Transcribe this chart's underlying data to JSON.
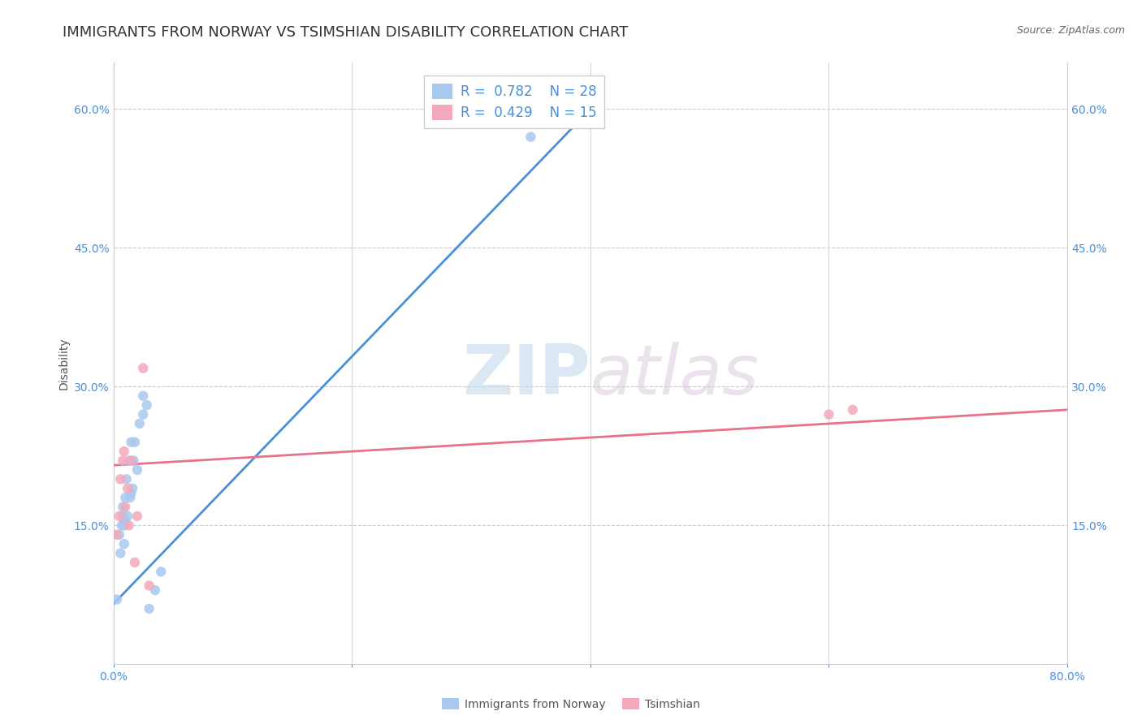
{
  "title": "IMMIGRANTS FROM NORWAY VS TSIMSHIAN DISABILITY CORRELATION CHART",
  "source": "Source: ZipAtlas.com",
  "ylabel": "Disability",
  "xlim": [
    0.0,
    0.8
  ],
  "ylim": [
    0.0,
    0.65
  ],
  "yticks": [
    0.0,
    0.15,
    0.3,
    0.45,
    0.6
  ],
  "ytick_labels": [
    "",
    "15.0%",
    "30.0%",
    "45.0%",
    "60.0%"
  ],
  "xticks": [
    0.0,
    0.2,
    0.4,
    0.6,
    0.8
  ],
  "xtick_labels": [
    "0.0%",
    "",
    "",
    "",
    "80.0%"
  ],
  "norway_R": 0.782,
  "norway_N": 28,
  "tsimshian_R": 0.429,
  "tsimshian_N": 15,
  "norway_color": "#a8c8ee",
  "tsimshian_color": "#f4a8bb",
  "norway_line_color": "#4a90d9",
  "tsimshian_line_color": "#e8728a",
  "norway_x": [
    0.003,
    0.005,
    0.006,
    0.007,
    0.008,
    0.008,
    0.009,
    0.009,
    0.01,
    0.01,
    0.011,
    0.012,
    0.013,
    0.014,
    0.015,
    0.015,
    0.016,
    0.017,
    0.018,
    0.02,
    0.022,
    0.025,
    0.025,
    0.028,
    0.03,
    0.035,
    0.04,
    0.35
  ],
  "norway_y": [
    0.07,
    0.14,
    0.12,
    0.15,
    0.16,
    0.17,
    0.13,
    0.15,
    0.155,
    0.18,
    0.2,
    0.16,
    0.22,
    0.18,
    0.185,
    0.24,
    0.19,
    0.22,
    0.24,
    0.21,
    0.26,
    0.27,
    0.29,
    0.28,
    0.06,
    0.08,
    0.1,
    0.57
  ],
  "tsimshian_x": [
    0.003,
    0.005,
    0.006,
    0.008,
    0.009,
    0.01,
    0.012,
    0.013,
    0.015,
    0.018,
    0.02,
    0.025,
    0.03,
    0.6,
    0.62
  ],
  "tsimshian_y": [
    0.14,
    0.16,
    0.2,
    0.22,
    0.23,
    0.17,
    0.19,
    0.15,
    0.22,
    0.11,
    0.16,
    0.32,
    0.085,
    0.27,
    0.275
  ],
  "norway_trend_x": [
    0.0,
    0.4
  ],
  "norway_trend_y": [
    0.065,
    0.6
  ],
  "tsimshian_trend_x": [
    0.0,
    0.8
  ],
  "tsimshian_trend_y": [
    0.215,
    0.275
  ],
  "watermark_zip": "ZIP",
  "watermark_atlas": "atlas",
  "background_color": "#ffffff",
  "grid_color": "#cccccc",
  "title_fontsize": 13,
  "axis_label_fontsize": 10,
  "tick_fontsize": 10,
  "legend_fontsize": 12,
  "marker_size": 80
}
